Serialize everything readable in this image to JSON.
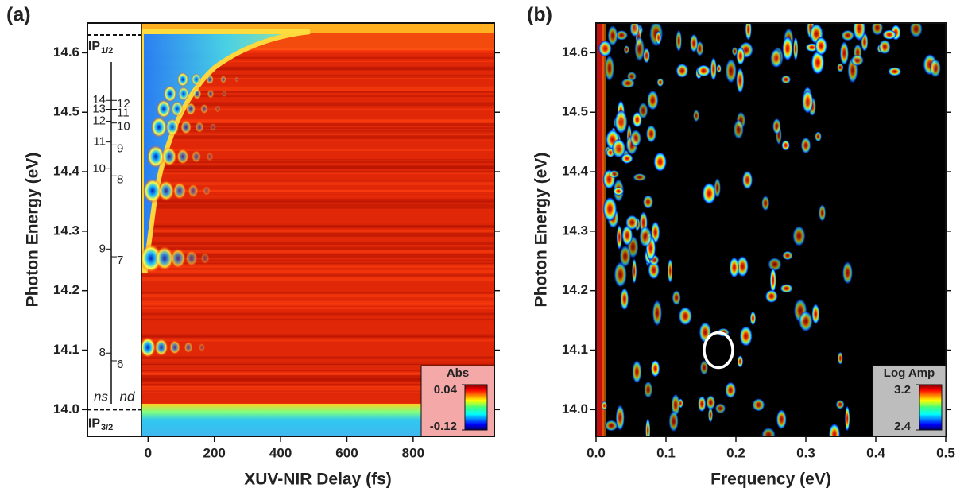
{
  "chart_data": [
    {
      "type": "heatmap",
      "panel_label": "(a)",
      "x_label": "XUV-NIR Delay (fs)",
      "y_label": "Photon Energy (eV)",
      "xlim": [
        -20,
        1045
      ],
      "xticks": [
        0,
        200,
        400,
        600,
        800
      ],
      "ylim": [
        13.955,
        14.65
      ],
      "yticks": [
        {
          "value": 14,
          "label": "14.0"
        },
        14.1,
        14.2,
        14.3,
        14.4,
        14.5,
        14.6
      ],
      "colorbar": {
        "title": "Abs",
        "clim": [
          -0.12,
          0.04
        ],
        "ticks": [
          0.04,
          -0.12
        ]
      },
      "thresholds": [
        {
          "label": "IP",
          "subscript": "1/2",
          "energy": 14.63
        },
        {
          "label": "IP",
          "subscript": "3/2",
          "energy": 14.0
        }
      ],
      "level_series": [
        {
          "name": "ns",
          "levels": [
            14,
            13,
            12,
            11,
            10,
            9,
            8
          ],
          "energies": [
            14.52,
            14.505,
            14.485,
            14.45,
            14.405,
            14.27,
            14.095
          ]
        },
        {
          "name": "nd",
          "levels": [
            12,
            11,
            10,
            9,
            8,
            7,
            6
          ],
          "energies": [
            14.52,
            14.505,
            14.482,
            14.445,
            14.393,
            14.257,
            14.082
          ]
        }
      ]
    },
    {
      "type": "heatmap",
      "panel_label": "(b)",
      "x_label": "Frequency (eV)",
      "y_label": "Photon Energy (eV)",
      "xlim": [
        0,
        0.5
      ],
      "xticks": [
        {
          "value": 0,
          "label": "0.0"
        },
        0.1,
        0.2,
        0.3,
        0.4,
        0.5
      ],
      "ylim": [
        13.955,
        14.65
      ],
      "yticks": [
        {
          "value": 14,
          "label": "14.0"
        },
        14.1,
        14.2,
        14.3,
        14.4,
        14.5,
        14.6
      ],
      "colorbar": {
        "title": "Log Amp",
        "clim": [
          2.4,
          3.2
        ],
        "ticks": [
          3.2,
          2.4
        ]
      },
      "highlight": {
        "x": 0.175,
        "y": 14.1
      }
    }
  ]
}
